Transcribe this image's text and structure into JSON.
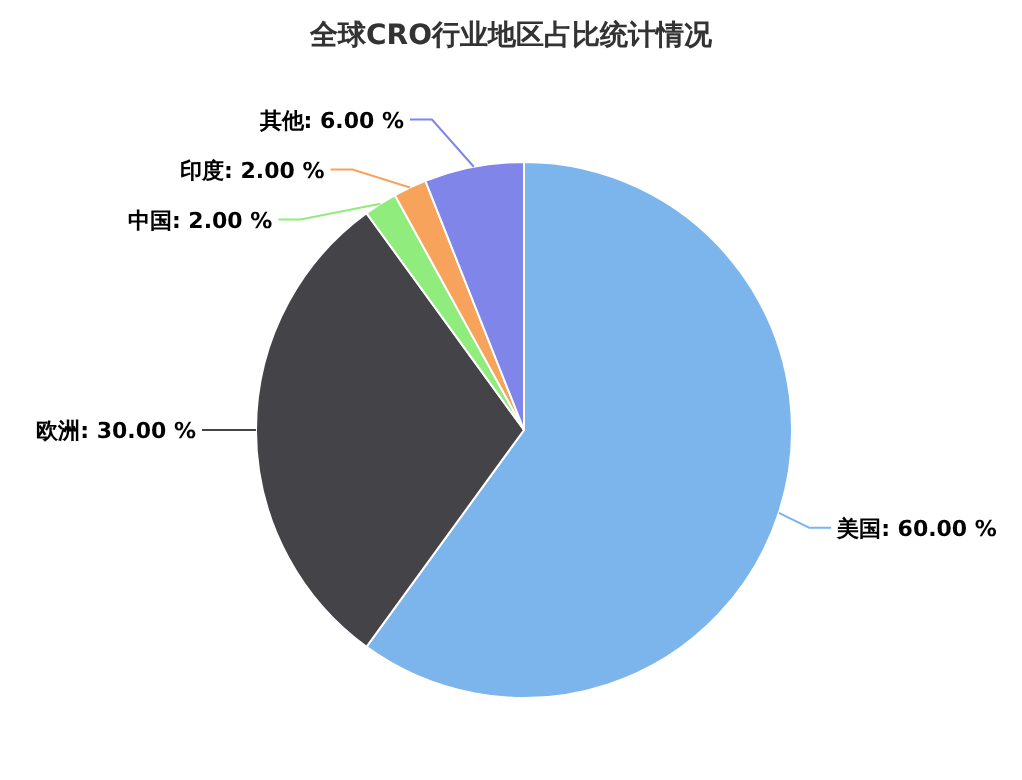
{
  "chart_data": {
    "type": "pie",
    "title": "全球CRO行业地区占比统计情况",
    "categories": [
      "美国",
      "欧洲",
      "中国",
      "印度",
      "其他"
    ],
    "values": [
      60,
      30,
      2,
      2,
      6
    ],
    "value_labels": [
      "60.00 %",
      "30.00 %",
      "2.00 %",
      "2.00 %",
      "6.00 %"
    ],
    "colors": [
      "#7cb5ec",
      "#434348",
      "#90ed7d",
      "#f7a35c",
      "#8085e9"
    ],
    "legend": false
  }
}
